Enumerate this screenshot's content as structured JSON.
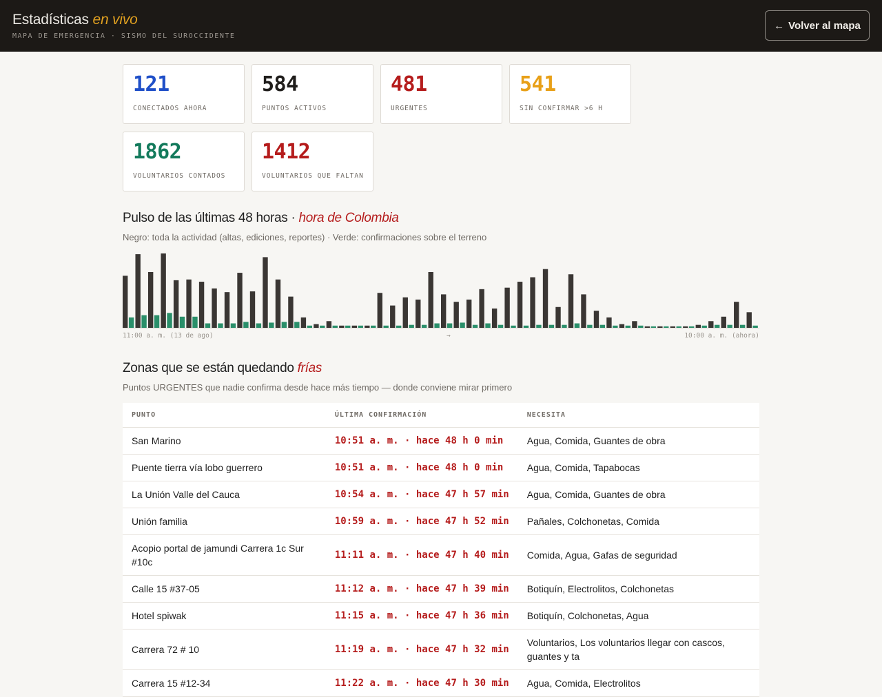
{
  "header": {
    "title_main": "Estadísticas",
    "title_accent": "en vivo",
    "subtitle": "MAPA DE EMERGENCIA · SISMO DEL SUROCCIDENTE",
    "back_button": "Volver al mapa",
    "back_icon": "←"
  },
  "colors": {
    "blue": "#1f4fc8",
    "black": "#1f1d1b",
    "red": "#b51c1c",
    "orange": "#e8a018",
    "green": "#137a5c",
    "activity_bar": "#3a3633",
    "confirm_bar": "#2a8f6a"
  },
  "stats": [
    {
      "value": "121",
      "label": "CONECTADOS AHORA",
      "color": "#1f4fc8"
    },
    {
      "value": "584",
      "label": "PUNTOS ACTIVOS",
      "color": "#1f1d1b"
    },
    {
      "value": "481",
      "label": "URGENTES",
      "color": "#b51c1c"
    },
    {
      "value": "541",
      "label": "SIN CONFIRMAR >6 H",
      "color": "#e8a018"
    },
    {
      "value": "1862",
      "label": "VOLUNTARIOS CONTADOS",
      "color": "#137a5c"
    },
    {
      "value": "1412",
      "label": "VOLUNTARIOS QUE FALTAN",
      "color": "#b51c1c"
    }
  ],
  "pulse": {
    "title_main": "Pulso de las últimas 48 horas · ",
    "title_accent": "hora de Colombia",
    "subtitle": "Negro: toda la actividad (altas, ediciones, reportes) · Verde: confirmaciones sobre el terreno",
    "axis_start": "11:00 a. m. (13 de ago)",
    "axis_mid": "→",
    "axis_end": "10:00 a. m. (ahora)"
  },
  "chart_data": {
    "type": "bar",
    "ylim": [
      0,
      100
    ],
    "series": [
      {
        "values": [
          70,
          99,
          75,
          100,
          64,
          65,
          62,
          53,
          48,
          74,
          49,
          95,
          65,
          42,
          14,
          5,
          9,
          3,
          3,
          3,
          47,
          30,
          41,
          38,
          75,
          45,
          35,
          38,
          52,
          26,
          54,
          62,
          68,
          79,
          28,
          72,
          45,
          23,
          14,
          5,
          9,
          2,
          2,
          2,
          2,
          4,
          9,
          15,
          35,
          21
        ]
      },
      {
        "values": [
          14,
          17,
          17,
          20,
          15,
          15,
          6,
          6,
          6,
          8,
          6,
          7,
          8,
          8,
          3,
          3,
          3,
          3,
          3,
          3,
          3,
          3,
          4,
          4,
          6,
          6,
          7,
          4,
          6,
          4,
          3,
          3,
          4,
          4,
          4,
          6,
          4,
          4,
          3,
          3,
          3,
          2,
          2,
          2,
          2,
          3,
          4,
          4,
          4,
          3
        ]
      }
    ]
  },
  "cold": {
    "title_main": "Zonas que se están quedando ",
    "title_accent": "frías",
    "subtitle": "Puntos URGENTES que nadie confirma desde hace más tiempo — donde conviene mirar primero",
    "headers": [
      "PUNTO",
      "ÚLTIMA CONFIRMACIÓN",
      "NECESITA"
    ],
    "rows": [
      {
        "point": "San Marino",
        "time": "10:51 a. m. · hace 48 h 0 min",
        "needs": "Agua, Comida, Guantes de obra"
      },
      {
        "point": "Puente tierra vía lobo guerrero",
        "time": "10:51 a. m. · hace 48 h 0 min",
        "needs": "Agua, Comida, Tapabocas"
      },
      {
        "point": "La Unión Valle del Cauca",
        "time": "10:54 a. m. · hace 47 h 57 min",
        "needs": "Agua, Comida, Guantes de obra"
      },
      {
        "point": "Unión familia",
        "time": "10:59 a. m. · hace 47 h 52 min",
        "needs": "Pañales, Colchonetas, Comida"
      },
      {
        "point": "Acopio portal de jamundi Carrera 1c Sur #10c",
        "time": "11:11 a. m. · hace 47 h 40 min",
        "needs": "Comida, Agua, Gafas de seguridad"
      },
      {
        "point": "Calle 15 #37-05",
        "time": "11:12 a. m. · hace 47 h 39 min",
        "needs": "Botiquín, Electrolitos, Colchonetas"
      },
      {
        "point": "Hotel spiwak",
        "time": "11:15 a. m. · hace 47 h 36 min",
        "needs": "Botiquín, Colchonetas, Agua"
      },
      {
        "point": "Carrera 72 # 10",
        "time": "11:19 a. m. · hace 47 h 32 min",
        "needs": "Voluntarios, Los voluntarios llegar con cascos, guantes y ta"
      },
      {
        "point": "Carrera 15 #12-34",
        "time": "11:22 a. m. · hace 47 h 30 min",
        "needs": "Agua, Comida, Electrolitos"
      }
    ]
  }
}
